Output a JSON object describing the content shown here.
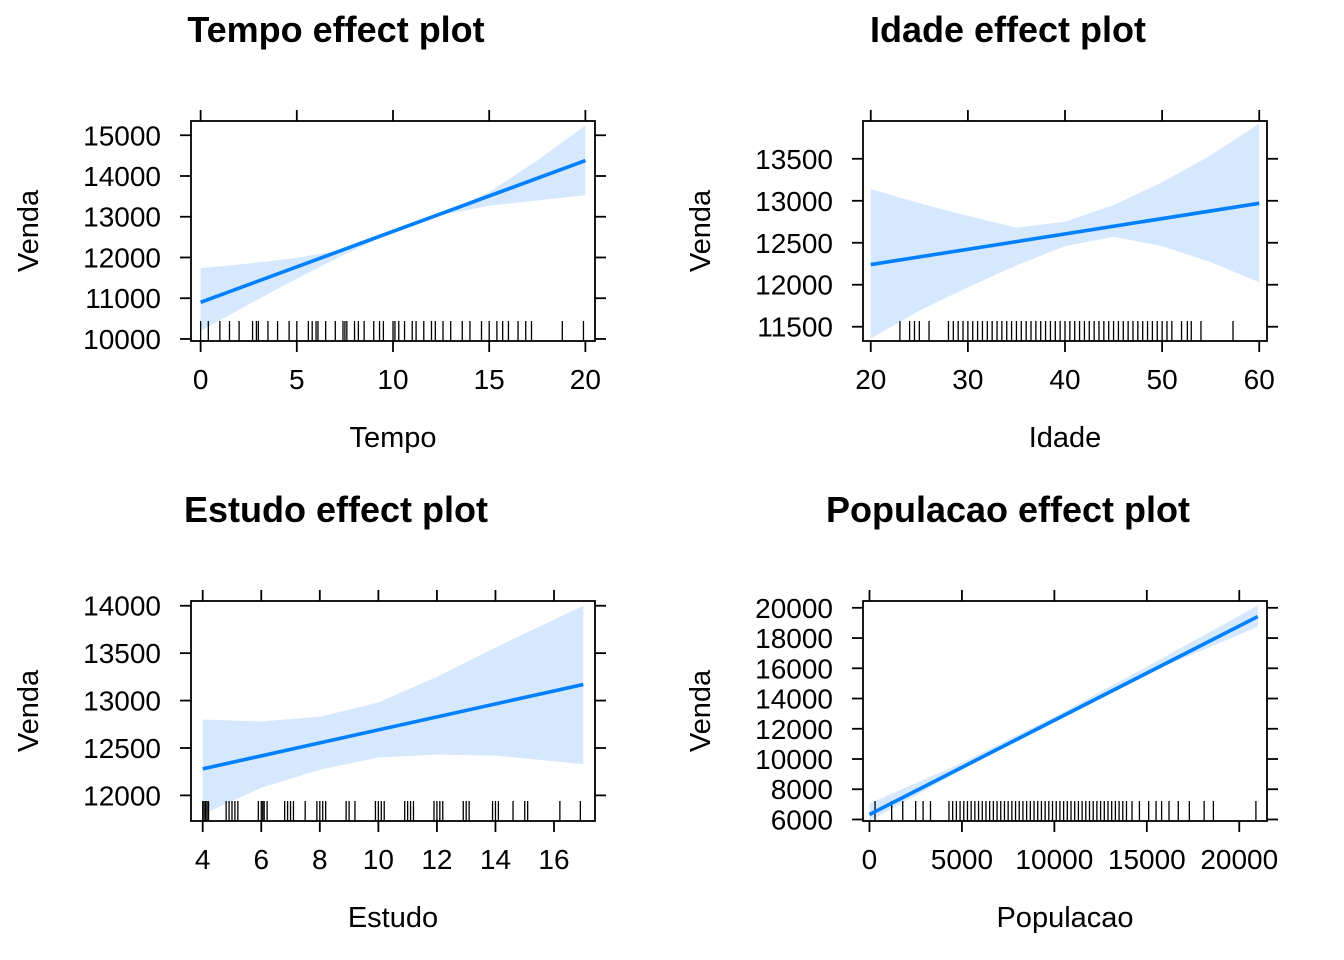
{
  "colors": {
    "line": "#0080ff",
    "band": "#d6e8fd"
  },
  "chart_data": [
    {
      "type": "line",
      "title": "Tempo effect plot",
      "xlabel": "Tempo",
      "ylabel": "Venda",
      "xlim": [
        -0.5,
        20.5
      ],
      "ylim": [
        9950,
        15350
      ],
      "xticks": [
        0,
        5,
        10,
        15,
        20
      ],
      "yticks": [
        10000,
        11000,
        12000,
        13000,
        14000,
        15000
      ],
      "fit": {
        "x": [
          0,
          20
        ],
        "y": [
          10900,
          14380
        ]
      },
      "band": {
        "x": [
          0,
          2.5,
          5,
          7.5,
          10,
          12.5,
          15,
          17.5,
          20
        ],
        "lower": [
          10200,
          10850,
          11480,
          12080,
          12620,
          13040,
          13270,
          13400,
          13530
        ],
        "upper": [
          11740,
          11850,
          11990,
          12200,
          12620,
          13050,
          13610,
          14380,
          15240
        ]
      },
      "rug": [
        0,
        0.4,
        1,
        1.5,
        2,
        2.7,
        2.9,
        3,
        3.5,
        4,
        4.6,
        5,
        5.6,
        5.8,
        6,
        6.1,
        6.5,
        7,
        7.4,
        7.5,
        7.6,
        8,
        8.2,
        8.5,
        9,
        9.3,
        9.5,
        10,
        10.1,
        10.3,
        10.6,
        11,
        11.2,
        11.6,
        12,
        12.2,
        12.6,
        13,
        13.6,
        14,
        14.6,
        15,
        15.4,
        15.7,
        16,
        16.5,
        16.9,
        17.2,
        18.8,
        19.9
      ]
    },
    {
      "type": "line",
      "title": "Idade effect plot",
      "xlabel": "Idade",
      "ylabel": "Venda",
      "xlim": [
        19.2,
        60.8
      ],
      "ylim": [
        11330,
        13950
      ],
      "xticks": [
        20,
        30,
        40,
        50,
        60
      ],
      "yticks": [
        11500,
        12000,
        12500,
        13000,
        13500
      ],
      "fit": {
        "x": [
          20,
          60
        ],
        "y": [
          12240,
          12970
        ]
      },
      "band": {
        "x": [
          20,
          25,
          30,
          35,
          40,
          45,
          50,
          55,
          60
        ],
        "lower": [
          11360,
          11690,
          11970,
          12230,
          12460,
          12570,
          12460,
          12270,
          12030
        ],
        "upper": [
          13140,
          12970,
          12820,
          12680,
          12750,
          12950,
          13220,
          13540,
          13920
        ]
      },
      "rug": [
        23,
        24,
        24.5,
        25,
        26,
        28,
        28.5,
        29,
        29.5,
        30,
        30.5,
        31,
        31.5,
        32,
        32.5,
        33,
        33.5,
        34,
        34.5,
        35,
        35.5,
        36,
        36.5,
        37,
        37.5,
        38,
        38.5,
        39,
        39.5,
        40,
        40.5,
        41,
        41.5,
        42,
        42.5,
        43,
        43.5,
        44,
        44.5,
        45,
        45.5,
        46,
        46.5,
        47,
        47.5,
        48,
        48.5,
        49,
        49.5,
        50,
        50.5,
        51,
        52,
        52.6,
        53,
        54,
        57.3
      ]
    },
    {
      "type": "line",
      "title": "Estudo effect plot",
      "xlabel": "Estudo",
      "ylabel": "Venda",
      "xlim": [
        3.6,
        17.4
      ],
      "ylim": [
        11730,
        14050
      ],
      "xticks": [
        4,
        6,
        8,
        10,
        12,
        14,
        16
      ],
      "yticks": [
        12000,
        12500,
        13000,
        13500,
        14000
      ],
      "fit": {
        "x": [
          4,
          17
        ],
        "y": [
          12280,
          13170
        ]
      },
      "band": {
        "x": [
          4,
          6,
          8,
          10,
          12,
          14,
          17
        ],
        "lower": [
          11800,
          12080,
          12270,
          12400,
          12430,
          12420,
          12330
        ],
        "upper": [
          12800,
          12780,
          12830,
          12980,
          13250,
          13560,
          14000
        ]
      },
      "rug": [
        4,
        4.05,
        4.1,
        4.15,
        4.2,
        4.8,
        4.9,
        5,
        5.1,
        5.2,
        5.9,
        6,
        6.05,
        6.1,
        6.2,
        6.8,
        6.9,
        7,
        7.1,
        7.5,
        7.9,
        8,
        8.1,
        8.2,
        8.9,
        9,
        9.2,
        9.9,
        10,
        10.1,
        10.2,
        10.9,
        11,
        11.1,
        11.2,
        11.9,
        12,
        12.1,
        12.2,
        12.9,
        13,
        13.1,
        13.9,
        14,
        14.1,
        14.6,
        15,
        15.1,
        16.2,
        16.9
      ]
    },
    {
      "type": "line",
      "title": "Populacao effect plot",
      "xlabel": "Populacao",
      "ylabel": "Venda",
      "xlim": [
        -350,
        21500
      ],
      "ylim": [
        5900,
        20450
      ],
      "xticks": [
        0,
        5000,
        10000,
        15000,
        20000
      ],
      "xtick_labels": [
        "0",
        "5000",
        "10000",
        "15000",
        "20000"
      ],
      "yticks": [
        6000,
        8000,
        10000,
        12000,
        14000,
        16000,
        18000,
        20000
      ],
      "fit": {
        "x": [
          0,
          21000
        ],
        "y": [
          6330,
          19420
        ]
      },
      "band": {
        "x": [
          0,
          5000,
          10000,
          15000,
          21000
        ],
        "lower": [
          5900,
          9280,
          12540,
          15640,
          18750
        ],
        "upper": [
          7050,
          9750,
          12800,
          16100,
          20150
        ]
      },
      "rug": [
        300,
        1200,
        1800,
        2500,
        2900,
        3300,
        4300,
        4500,
        4700,
        4900,
        5100,
        5300,
        5500,
        5700,
        5900,
        6100,
        6300,
        6500,
        6700,
        6900,
        7100,
        7300,
        7500,
        7700,
        7900,
        8100,
        8300,
        8500,
        8700,
        8900,
        9100,
        9300,
        9500,
        9700,
        9900,
        10100,
        10300,
        10500,
        10700,
        10900,
        11100,
        11300,
        11500,
        11700,
        11900,
        12100,
        12300,
        12500,
        12700,
        12900,
        13100,
        13300,
        13500,
        13700,
        13900,
        14200,
        14600,
        15100,
        15500,
        15800,
        16200,
        16700,
        17300,
        18100,
        18600,
        20900
      ]
    }
  ]
}
